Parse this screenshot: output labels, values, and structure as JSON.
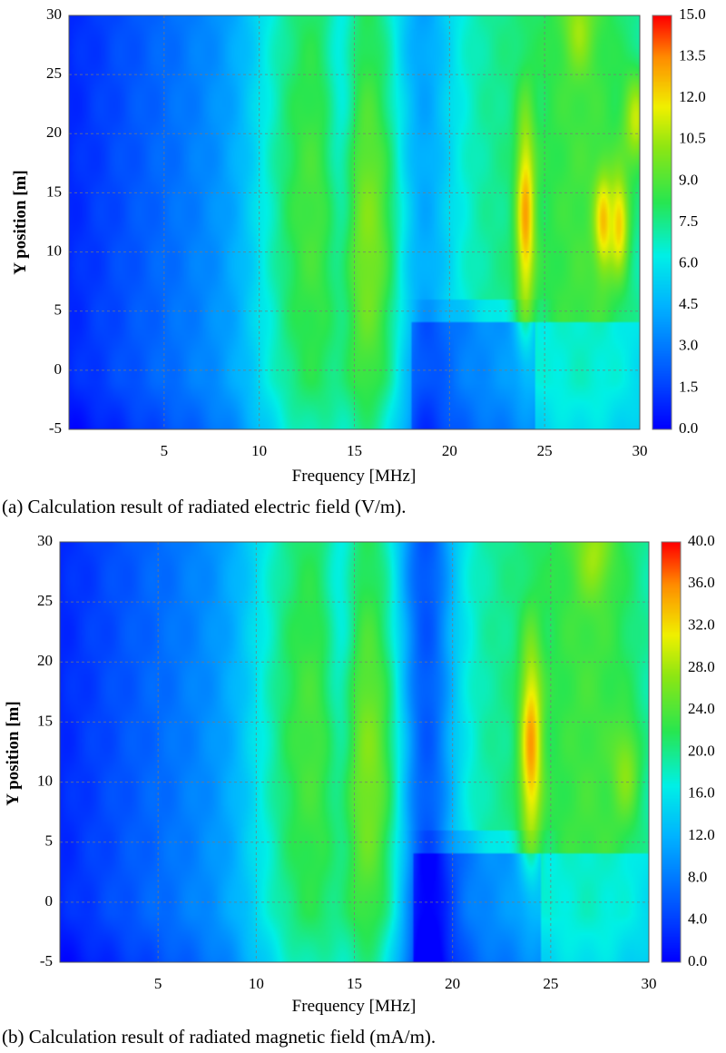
{
  "chart_data": [
    {
      "type": "heatmap",
      "id": "a",
      "caption": "(a) Calculation result of radiated electric field (V/m).",
      "xlabel": "Frequency [MHz]",
      "ylabel": "Y position [m]",
      "xlim": [
        0,
        30
      ],
      "ylim": [
        -5,
        30
      ],
      "x_ticks": [
        "5",
        "10",
        "15",
        "20",
        "25",
        "30"
      ],
      "y_ticks": [
        "-5",
        "0",
        "5",
        "10",
        "15",
        "20",
        "25",
        "30"
      ],
      "grid": true,
      "colorbar": {
        "min": 0,
        "max": 15,
        "ticks": [
          "0.0",
          "1.5",
          "3.0",
          "4.5",
          "6.0",
          "7.5",
          "9.0",
          "10.5",
          "12.0",
          "13.5",
          "15.0"
        ]
      },
      "hotspots": [
        {
          "f": 24.0,
          "y": 13,
          "value": 13.0,
          "sf": 0.35,
          "sy": 6
        },
        {
          "f": 28.1,
          "y": 12.5,
          "value": 12.5,
          "sf": 0.35,
          "sy": 3
        },
        {
          "f": 28.9,
          "y": 12.5,
          "value": 12.5,
          "sf": 0.35,
          "sy": 3
        },
        {
          "f": 29.8,
          "y": 21,
          "value": 11.0,
          "sf": 0.5,
          "sy": 3
        },
        {
          "f": 26.8,
          "y": 29,
          "value": 10.5,
          "sf": 0.5,
          "sy": 2.5
        }
      ]
    },
    {
      "type": "heatmap",
      "id": "b",
      "caption": "(b) Calculation result of radiated magnetic field (mA/m).",
      "xlabel": "Frequency [MHz]",
      "ylabel": "Y position [m]",
      "xlim": [
        0,
        30
      ],
      "ylim": [
        -5,
        30
      ],
      "x_ticks": [
        "5",
        "10",
        "15",
        "20",
        "25",
        "30"
      ],
      "y_ticks": [
        "-5",
        "0",
        "5",
        "10",
        "15",
        "20",
        "25",
        "30"
      ],
      "grid": true,
      "colorbar": {
        "min": 0,
        "max": 40,
        "ticks": [
          "0.0",
          "4.0",
          "8.0",
          "12.0",
          "16.0",
          "20.0",
          "24.0",
          "28.0",
          "32.0",
          "36.0",
          "40.0"
        ]
      },
      "hotspots": [
        {
          "f": 24.0,
          "y": 13,
          "value": 35.0,
          "sf": 0.4,
          "sy": 6
        },
        {
          "f": 28.8,
          "y": 11,
          "value": 27.0,
          "sf": 0.5,
          "sy": 3
        },
        {
          "f": 27.2,
          "y": 29,
          "value": 28.0,
          "sf": 0.6,
          "sy": 2.5
        }
      ]
    }
  ]
}
